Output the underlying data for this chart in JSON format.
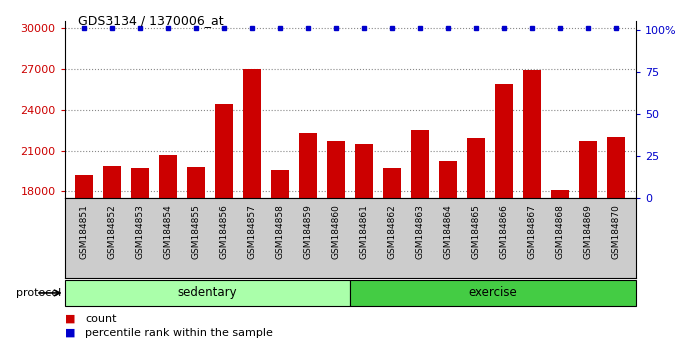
{
  "title": "GDS3134 / 1370006_at",
  "samples": [
    "GSM184851",
    "GSM184852",
    "GSM184853",
    "GSM184854",
    "GSM184855",
    "GSM184856",
    "GSM184857",
    "GSM184858",
    "GSM184859",
    "GSM184860",
    "GSM184861",
    "GSM184862",
    "GSM184863",
    "GSM184864",
    "GSM184865",
    "GSM184866",
    "GSM184867",
    "GSM184868",
    "GSM184869",
    "GSM184870"
  ],
  "counts": [
    19200,
    19900,
    19700,
    20700,
    19800,
    24400,
    27000,
    19600,
    22300,
    21700,
    21500,
    19700,
    22500,
    20200,
    21900,
    25900,
    26900,
    18100,
    21700,
    22000
  ],
  "sedentary_count": 10,
  "exercise_count": 10,
  "bar_color": "#cc0000",
  "percentile_color": "#0000cc",
  "ylim_left": [
    17500,
    30500
  ],
  "yticks_left": [
    18000,
    21000,
    24000,
    27000,
    30000
  ],
  "ylim_right": [
    0,
    105
  ],
  "yticks_right": [
    0,
    25,
    50,
    75,
    100
  ],
  "yticklabels_right": [
    "0",
    "25",
    "50",
    "75",
    "100%"
  ],
  "sedentary_color": "#aaffaa",
  "exercise_color": "#44cc44",
  "protocol_label": "protocol",
  "sedentary_label": "sedentary",
  "exercise_label": "exercise",
  "legend_count_label": "count",
  "legend_percentile_label": "percentile rank within the sample",
  "grid_color": "#888888",
  "xtick_bg_color": "#cccccc",
  "fig_bg": "#f0f0f0"
}
